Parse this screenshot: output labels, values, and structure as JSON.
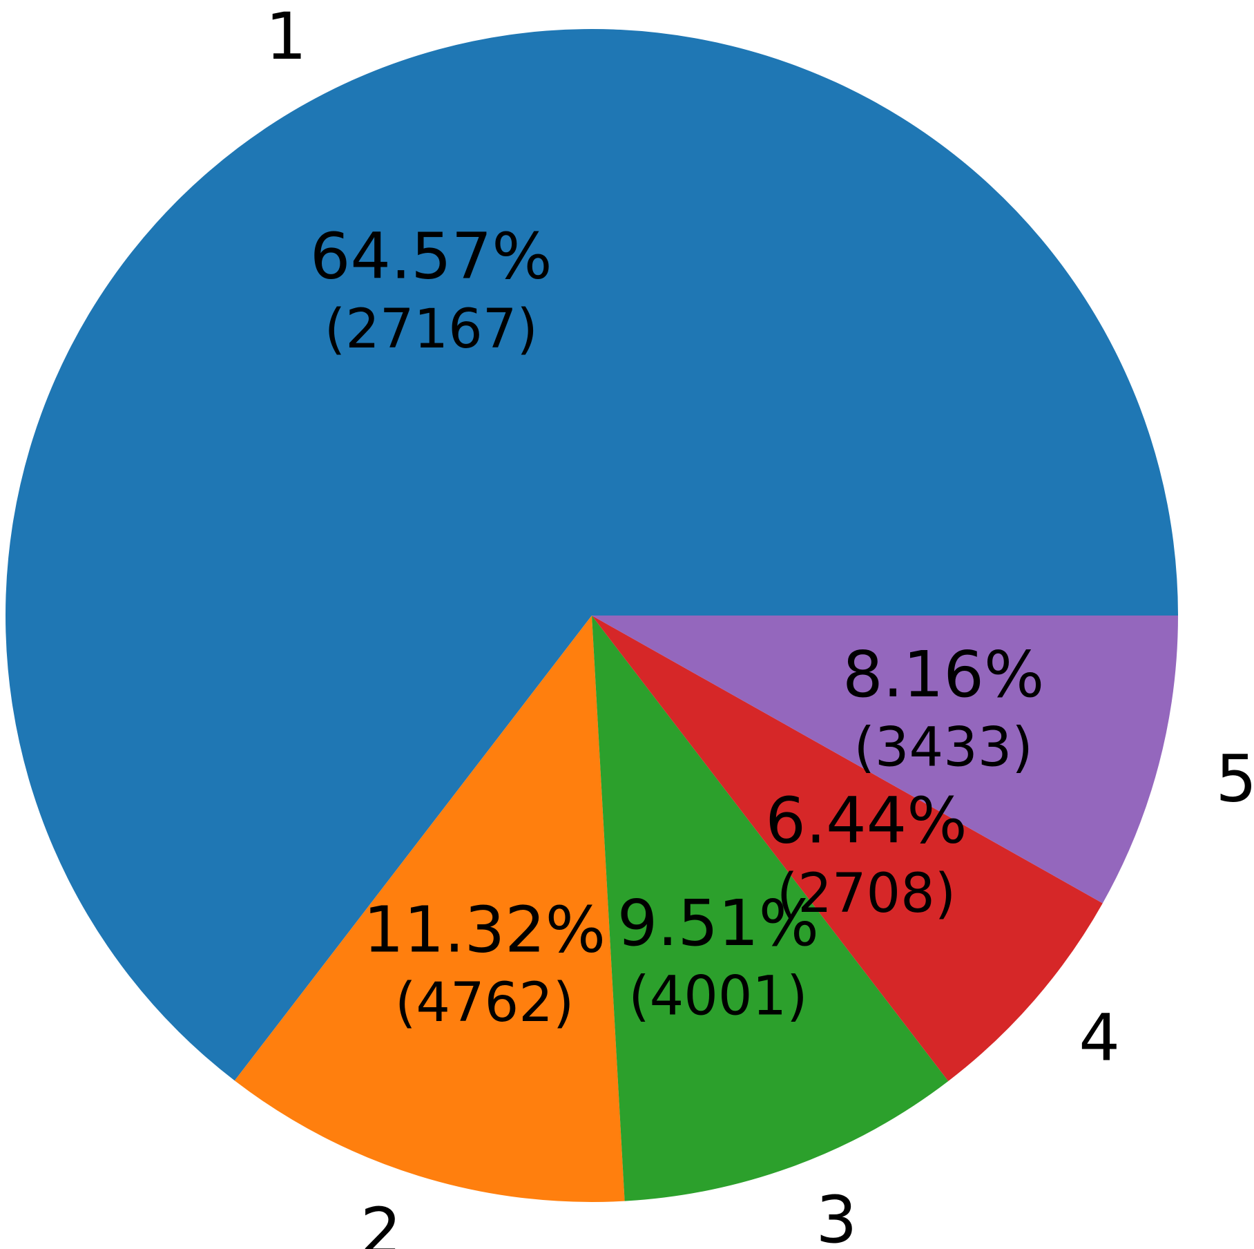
{
  "chart_data": {
    "type": "pie",
    "start_angle_deg": 0,
    "direction": "counterclockwise",
    "slices": [
      {
        "label": "1",
        "value": 27167,
        "percent_text": "64.57%",
        "count_text": "(27167)",
        "color": "#1f77b4"
      },
      {
        "label": "2",
        "value": 4762,
        "percent_text": "11.32%",
        "count_text": "(4762)",
        "color": "#ff7f0e"
      },
      {
        "label": "3",
        "value": 4001,
        "percent_text": "9.51%",
        "count_text": "(4001)",
        "color": "#2ca02c"
      },
      {
        "label": "4",
        "value": 2708,
        "percent_text": "6.44%",
        "count_text": "(2708)",
        "color": "#d62728"
      },
      {
        "label": "5",
        "value": 3433,
        "percent_text": "8.16%",
        "count_text": "(3433)",
        "color": "#9467bd"
      }
    ]
  }
}
